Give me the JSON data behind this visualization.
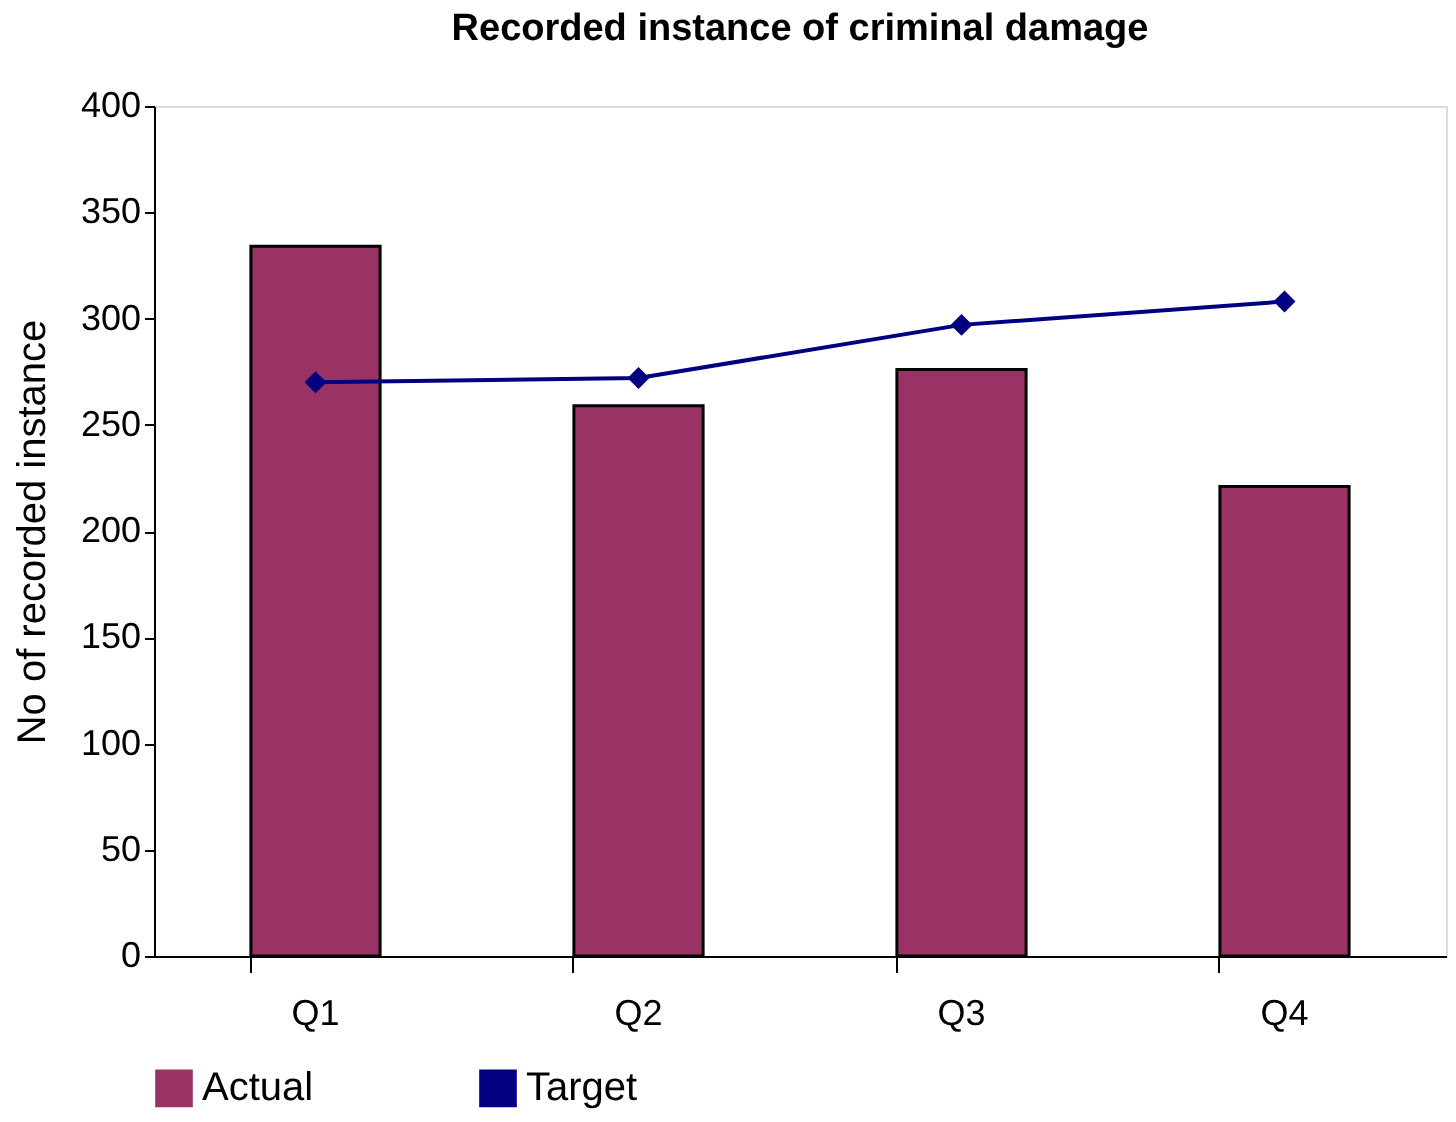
{
  "chart_data": {
    "type": "bar",
    "title": "Recorded instance of criminal damage",
    "ylabel": "No of recorded instance",
    "categories": [
      "Q1",
      "Q2",
      "Q3",
      "Q4"
    ],
    "series": [
      {
        "name": "Actual",
        "color": "#993366",
        "values": [
          334,
          259,
          276,
          221
        ]
      },
      {
        "name": "Target",
        "type": "line",
        "color": "#000080",
        "values": [
          270,
          272,
          297,
          308
        ],
        "marker": "diamond"
      }
    ],
    "ylim": [
      0,
      400
    ],
    "yticks": [
      0,
      50,
      100,
      150,
      200,
      250,
      300,
      350,
      400
    ],
    "grid": false,
    "legend": "bottom"
  }
}
